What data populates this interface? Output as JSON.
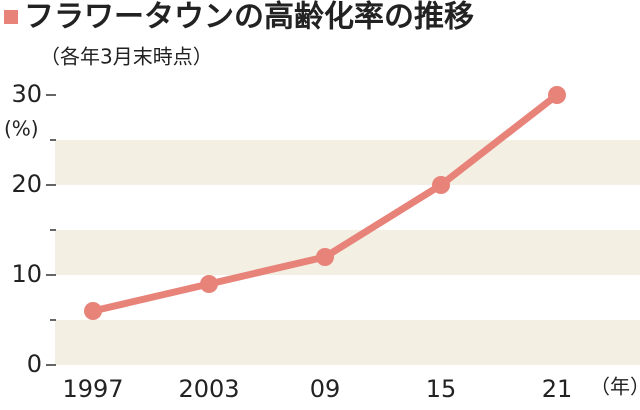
{
  "chart_data": {
    "type": "line",
    "title": "フラワータウンの高齢化率の推移",
    "subtitle": "（各年3月末時点）",
    "y_unit": "(%)",
    "x_unit": "（年）",
    "categories": [
      "1997",
      "2003",
      "09",
      "15",
      "21"
    ],
    "series": [
      {
        "name": "高齢化率",
        "color": "#e8837a",
        "values": [
          6,
          9,
          12,
          20,
          30
        ]
      }
    ],
    "ylim": [
      0,
      30
    ],
    "yticks": [
      0,
      10,
      20,
      30
    ],
    "yminorticks": [
      5,
      15,
      25
    ],
    "band_color": "#f3efe3"
  }
}
